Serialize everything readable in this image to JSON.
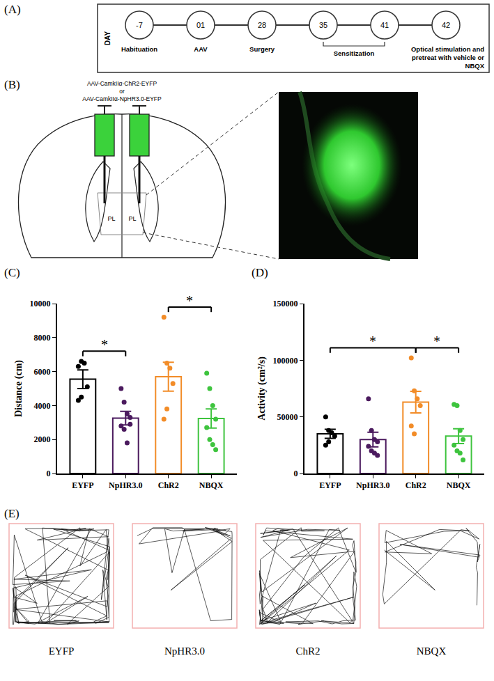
{
  "panel_labels": [
    "(A)",
    "(B)",
    "(C)",
    "(D)",
    "(E)"
  ],
  "timeline": {
    "axis_label": "DAY",
    "days": [
      "-7",
      "01",
      "28",
      "35",
      "41",
      "42"
    ],
    "events": [
      {
        "day": "-7",
        "label": "Habituation"
      },
      {
        "day": "01",
        "label": "AAV"
      },
      {
        "day": "28",
        "label": "Surgery"
      },
      {
        "from": "35",
        "to": "41",
        "label": "Sensitization"
      },
      {
        "day": "42",
        "label": "Optical stimulation and pretreat with vehicle or NBQX"
      }
    ]
  },
  "schematic": {
    "virus": [
      "AAV-CamkIIα-ChR2-EYFP",
      "or",
      "AAV-CamkIIα-NpHR3.0-EYFP"
    ],
    "region_labels": [
      "PL",
      "PL"
    ]
  },
  "chart_data": [
    {
      "type": "bar",
      "categories": [
        "EYFP",
        "NpHR3.0",
        "ChR2",
        "NBQX"
      ],
      "values": [
        5550,
        3262,
        5700,
        3237
      ],
      "errors": [
        550,
        400,
        850,
        560
      ],
      "points": [
        [
          6300,
          6600,
          6500,
          5100,
          4300,
          4500
        ],
        [
          5000,
          4200,
          3500,
          3300,
          2800,
          2600,
          1800,
          2900
        ],
        [
          9200,
          6500,
          6200,
          5300,
          3200,
          3800
        ],
        [
          5900,
          5000,
          4000,
          3200,
          2700,
          2000,
          1700,
          1400
        ]
      ],
      "colors": [
        "#000000",
        "#4b1a5e",
        "#f28c28",
        "#3ec43e"
      ],
      "ylabel": "Distance (cm)",
      "ylim": [
        0,
        10000
      ],
      "yticks": [
        0,
        2000,
        4000,
        6000,
        8000,
        10000
      ],
      "significance": [
        {
          "from": "EYFP",
          "to": "NpHR3.0",
          "label": "*"
        },
        {
          "from": "ChR2",
          "to": "NBQX",
          "label": "*"
        }
      ]
    },
    {
      "type": "bar",
      "categories": [
        "EYFP",
        "NpHR3.0",
        "ChR2",
        "NBQX"
      ],
      "values": [
        35000,
        30000,
        63000,
        33000
      ],
      "errors": [
        4000,
        6500,
        9500,
        6500
      ],
      "points": [
        [
          50000,
          38000,
          36000,
          33000,
          25000,
          28000
        ],
        [
          66000,
          38000,
          30000,
          28000,
          24000,
          20000,
          18000,
          16000
        ],
        [
          102000,
          73000,
          66000,
          60000,
          42000,
          35000
        ],
        [
          61000,
          60000,
          38000,
          30000,
          25000,
          20000,
          18000,
          12000
        ]
      ],
      "colors": [
        "#000000",
        "#4b1a5e",
        "#f28c28",
        "#3ec43e"
      ],
      "ylabel": "Activity (cm²/s)",
      "ylim": [
        0,
        150000
      ],
      "yticks": [
        0,
        50000,
        100000,
        150000
      ],
      "significance": [
        {
          "from": "EYFP",
          "to": "ChR2",
          "label": "*"
        },
        {
          "from": "ChR2",
          "to": "NBQX",
          "label": "*"
        }
      ]
    }
  ],
  "trajectories": {
    "labels": [
      "EYFP",
      "NpHR3.0",
      "ChR2",
      "NBQX"
    ]
  }
}
